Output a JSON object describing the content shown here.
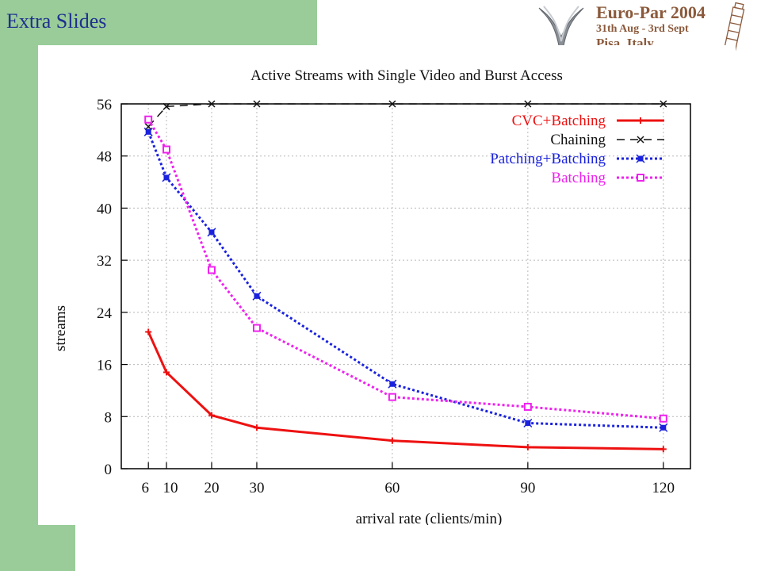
{
  "slide": {
    "title": "Extra Slides"
  },
  "logo": {
    "title": "Euro-Par 2004",
    "dates": "31th Aug - 3rd Sept",
    "place": "Pisa, Italy"
  },
  "colors": {
    "green_band": "#99cc99",
    "title_blue": "#1f2f8f",
    "logo_brown": "#8b5a3c"
  },
  "chart_data": {
    "type": "line",
    "title": "Active Streams with Single Video and Burst Access",
    "xlabel": "arrival rate (clients/min)",
    "ylabel": "streams",
    "x": [
      6,
      10,
      20,
      30,
      60,
      90,
      120
    ],
    "xticks": [
      "6",
      "10",
      "20",
      "30",
      "60",
      "90",
      "120"
    ],
    "yticks": [
      "0",
      "8",
      "16",
      "24",
      "32",
      "40",
      "48",
      "56"
    ],
    "xlim": [
      0,
      126
    ],
    "ylim": [
      0,
      56
    ],
    "grid": true,
    "legend_position": "top-right",
    "series": [
      {
        "name": "CVC+Batching",
        "color": "#ee1111",
        "style": "solid",
        "marker": "plus",
        "values": [
          21,
          14.8,
          8.2,
          6.3,
          4.3,
          3.3,
          3.0
        ]
      },
      {
        "name": "Chaining",
        "color": "#111111",
        "style": "dashed",
        "marker": "x",
        "values": [
          52.5,
          55.6,
          56,
          56,
          56,
          56,
          56
        ]
      },
      {
        "name": "Patching+Batching",
        "color": "#1a22dd",
        "style": "dotted",
        "marker": "star",
        "values": [
          51.7,
          44.7,
          36.3,
          26.5,
          13.0,
          7.0,
          6.3
        ]
      },
      {
        "name": "Batching",
        "color": "#ee22ee",
        "style": "dotted",
        "marker": "square",
        "values": [
          53.6,
          49.0,
          30.5,
          21.6,
          11.0,
          9.5,
          7.7
        ]
      }
    ]
  }
}
